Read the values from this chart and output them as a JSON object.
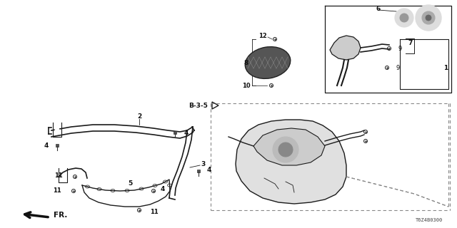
{
  "bg_color": "#ffffff",
  "diagram_code": "T6Z4B0300",
  "lc": "#1a1a1a",
  "dc": "#888888",
  "tc": "#111111"
}
